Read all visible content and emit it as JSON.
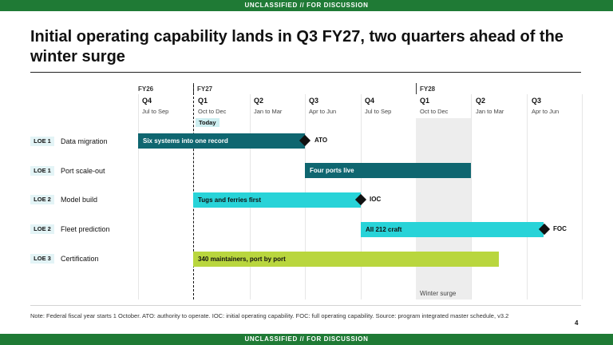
{
  "banner": {
    "top": "UNCLASSIFIED // FOR DISCUSSION",
    "bottom": "UNCLASSIFIED // FOR DISCUSSION"
  },
  "headline": "Initial operating capability lands in Q3 FY27, two quarters ahead of the winter surge",
  "timeline": {
    "fiscal_years": [
      "FY26",
      "FY27",
      "FY28"
    ],
    "quarters": [
      {
        "label": "Q4",
        "months": "Jul to Sep"
      },
      {
        "label": "Q1",
        "months": "Oct to Dec"
      },
      {
        "label": "Q2",
        "months": "Jan to Mar"
      },
      {
        "label": "Q3",
        "months": "Apr to Jun"
      },
      {
        "label": "Q4",
        "months": "Jul to Sep"
      },
      {
        "label": "Q1",
        "months": "Oct to Dec"
      },
      {
        "label": "Q2",
        "months": "Jan to Mar"
      },
      {
        "label": "Q3",
        "months": "Apr to Jun"
      }
    ],
    "today_label": "Today",
    "surge_label": "Winter surge"
  },
  "rows": [
    {
      "loe": "LOE 1",
      "name": "Data migration",
      "bar_label": "Six systems into one record",
      "milestone": "ATO"
    },
    {
      "loe": "LOE 1",
      "name": "Port scale-out",
      "bar_label": "Four ports live",
      "milestone": ""
    },
    {
      "loe": "LOE 2",
      "name": "Model build",
      "bar_label": "Tugs and ferries first",
      "milestone": "IOC"
    },
    {
      "loe": "LOE 2",
      "name": "Fleet prediction",
      "bar_label": "All 212 craft",
      "milestone": "FOC"
    },
    {
      "loe": "LOE 3",
      "name": "Certification",
      "bar_label": "340 maintainers, port by port",
      "milestone": ""
    }
  ],
  "colors": {
    "banner": "#1f7a35",
    "dark_teal": "#0f6670",
    "cyan": "#28d3d8",
    "lime": "#b9d63e"
  },
  "footer": {
    "note": "Note: Federal fiscal year starts 1 October. ATO: authority to operate. IOC: initial operating capability. FOC: full operating capability. Source: program integrated master schedule, v3.2",
    "page_number": "4"
  }
}
